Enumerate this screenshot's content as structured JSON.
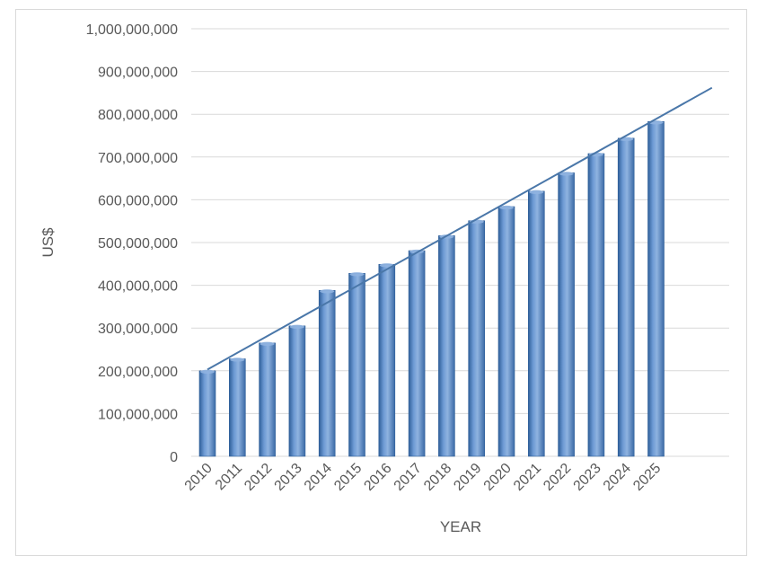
{
  "chart_data": {
    "type": "bar",
    "title": "",
    "xlabel": "YEAR",
    "ylabel": "US$",
    "categories": [
      "2010",
      "2011",
      "2012",
      "2013",
      "2014",
      "2015",
      "2016",
      "2017",
      "2018",
      "2019",
      "2020",
      "2021",
      "2022",
      "2023",
      "2024",
      "2025"
    ],
    "values": [
      200000000,
      228000000,
      265000000,
      305000000,
      388000000,
      428000000,
      449000000,
      481000000,
      516000000,
      551000000,
      584000000,
      620000000,
      663000000,
      708000000,
      744000000,
      783000000
    ],
    "trendline": {
      "type": "linear",
      "start": {
        "x": "2010",
        "y": 203000000
      },
      "end_y_one_category_after_last": 862000000
    },
    "ylim": [
      0,
      1000000000
    ],
    "yticks": [
      0,
      100000000,
      200000000,
      300000000,
      400000000,
      500000000,
      600000000,
      700000000,
      800000000,
      900000000,
      1000000000
    ],
    "ytick_labels": [
      "0",
      "100,000,000",
      "200,000,000",
      "300,000,000",
      "400,000,000",
      "500,000,000",
      "600,000,000",
      "700,000,000",
      "800,000,000",
      "900,000,000",
      "1,000,000,000"
    ],
    "grid": true,
    "legend": "none",
    "colors": {
      "bar_fill": "#4f81bd",
      "bar_light": "#8fb3e0",
      "bar_dark": "#2f5f99",
      "trendline": "#4a77a9",
      "grid": "#d9d9d9",
      "text": "#595959"
    }
  }
}
